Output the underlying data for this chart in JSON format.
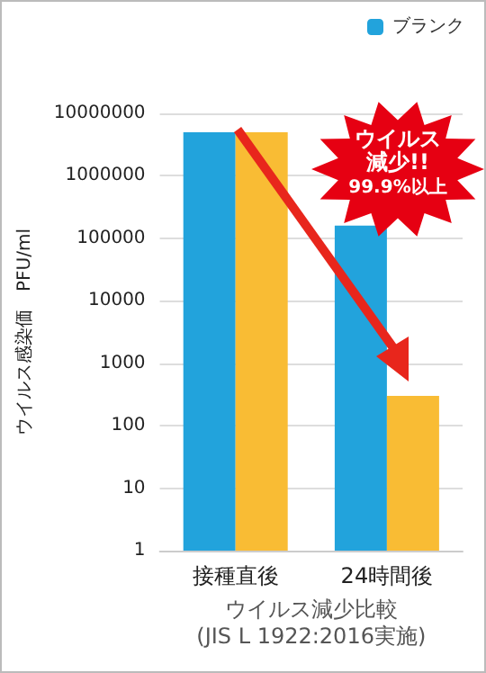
{
  "chart_data": {
    "type": "bar",
    "categories": [
      "接種直後",
      "24時間後"
    ],
    "series": [
      {
        "name": "ブランク",
        "color": "#22a3dc",
        "values": [
          5000000,
          160000
        ]
      },
      {
        "color": "#f9bc34",
        "values": [
          5000000,
          300
        ]
      }
    ],
    "ylabel": "ウイルス感染価　PFU/ml",
    "xlabel": "ウイルス減少比較\n(JIS L 1922:2016実施)",
    "annotations": [
      "ウイルス減少!!",
      "99.9%以上"
    ],
    "log": true,
    "ylim": [
      1,
      10000000
    ],
    "yticks": [
      1,
      10,
      100,
      1000,
      10000,
      100000,
      1000000,
      10000000
    ],
    "grid": "y",
    "legend": "top right"
  }
}
